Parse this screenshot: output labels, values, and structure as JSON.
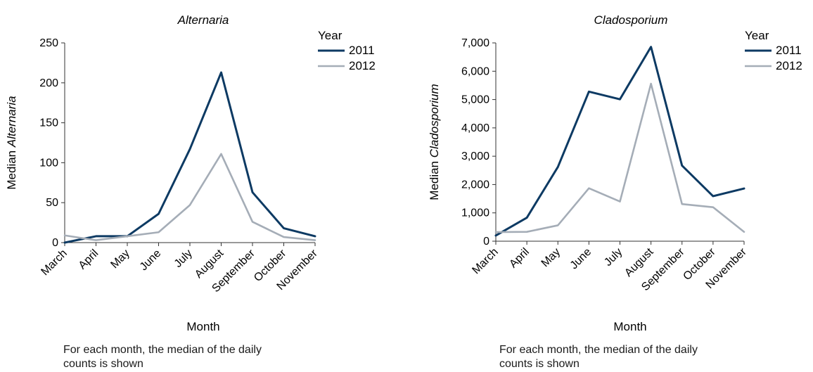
{
  "chart_data": [
    {
      "type": "line",
      "title": "Alternaria",
      "xlabel": "Month",
      "ylabel_prefix": "Median ",
      "ylabel_italic": "Alternaria",
      "categories": [
        "March",
        "April",
        "May",
        "June",
        "July",
        "August",
        "September",
        "October",
        "November"
      ],
      "yticks": [
        "0",
        "50",
        "100",
        "150",
        "200",
        "250"
      ],
      "ylim": [
        0,
        250
      ],
      "legend_title": "Year",
      "legend_position": "top-right",
      "grid": false,
      "series": [
        {
          "name": "2011",
          "color": "#0d3a63",
          "values": [
            0,
            8,
            8,
            36,
            117,
            213,
            63,
            18,
            8
          ]
        },
        {
          "name": "2012",
          "color": "#a5adb7",
          "values": [
            9,
            3,
            8,
            13,
            47,
            111,
            26,
            7,
            3
          ]
        }
      ],
      "note": "For each month, the median of the daily counts is shown"
    },
    {
      "type": "line",
      "title": "Cladosporium",
      "xlabel": "Month",
      "ylabel_prefix": "Median ",
      "ylabel_italic": "Cladosporium",
      "categories": [
        "March",
        "April",
        "May",
        "June",
        "July",
        "August",
        "September",
        "October",
        "November"
      ],
      "yticks": [
        "0",
        "1,000",
        "2,000",
        "3,000",
        "4,000",
        "5,000",
        "6,000",
        "7,000"
      ],
      "ylim": [
        0,
        7000
      ],
      "legend_title": "Year",
      "legend_position": "top-right",
      "grid": false,
      "series": [
        {
          "name": "2011",
          "color": "#0d3a63",
          "values": [
            200,
            830,
            2620,
            5280,
            5010,
            6860,
            2670,
            1590,
            1860
          ]
        },
        {
          "name": "2012",
          "color": "#a5adb7",
          "values": [
            320,
            330,
            560,
            1870,
            1400,
            5560,
            1310,
            1200,
            330
          ]
        }
      ],
      "note": "For each month, the median of the daily counts is shown"
    }
  ]
}
